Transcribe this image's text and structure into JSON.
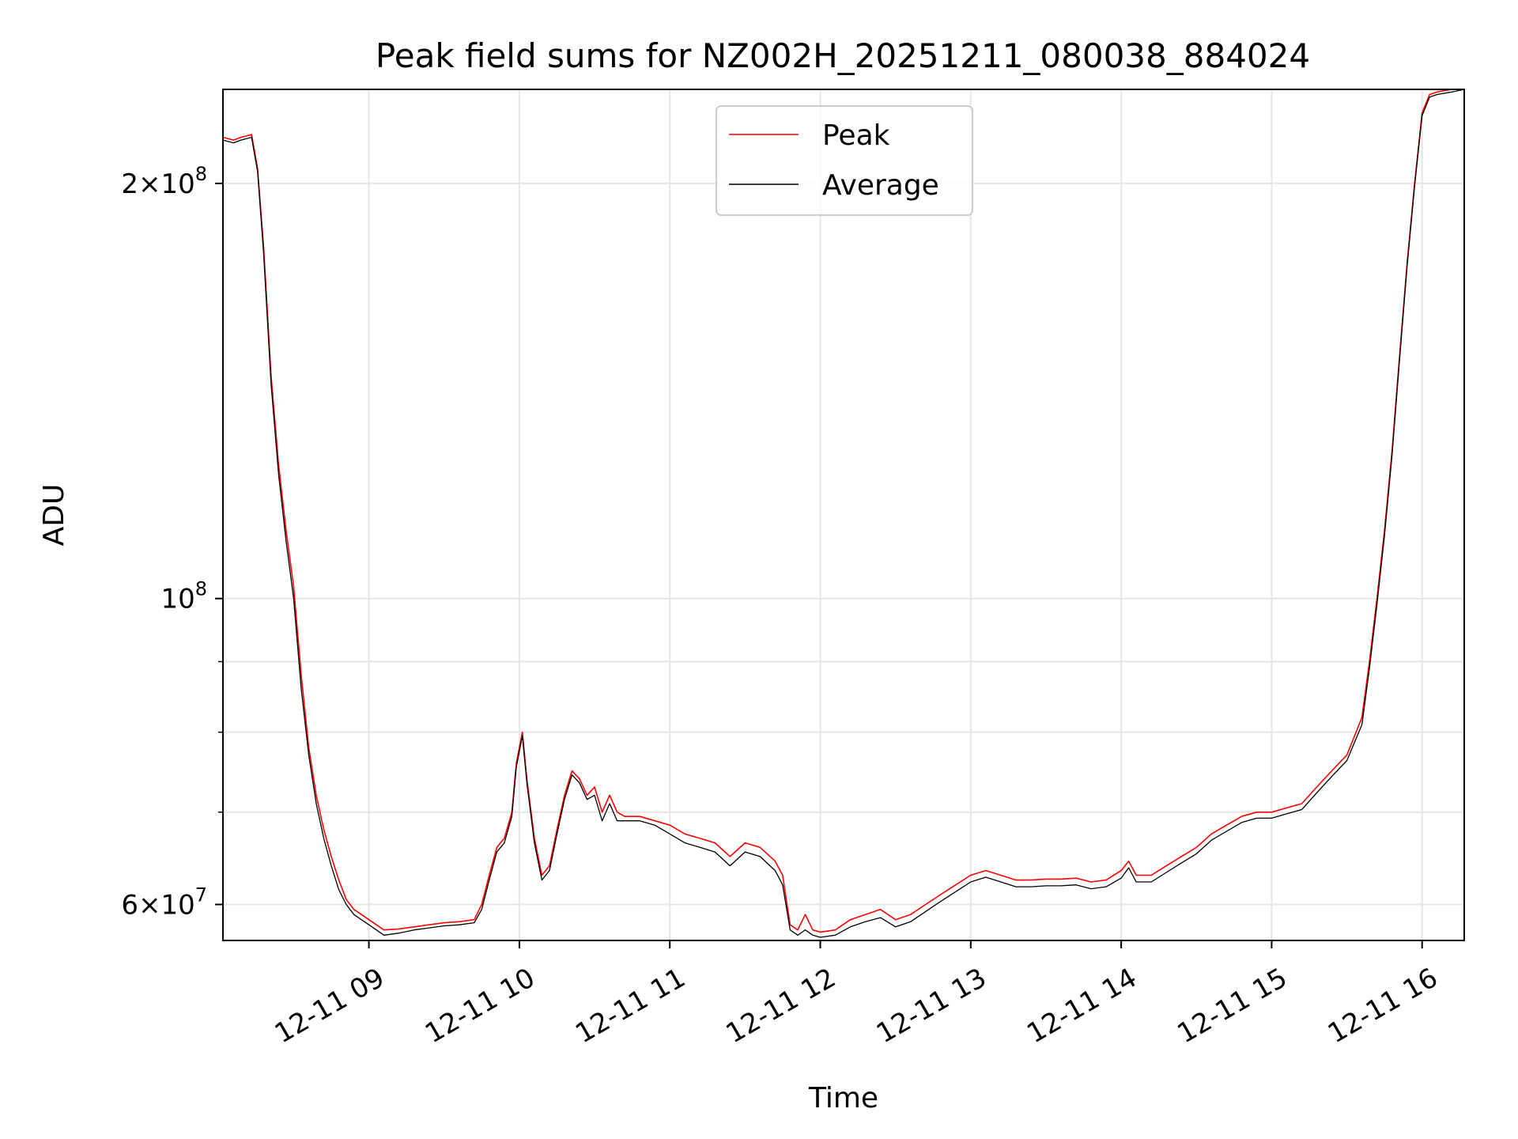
{
  "chart_data": {
    "type": "line",
    "title": "Peak field sums for NZ002H_20251211_080038_884024",
    "xlabel": "Time",
    "ylabel": "ADU",
    "yscale": "log",
    "xlim": [
      8.03,
      16.28
    ],
    "ylim": [
      56500000,
      234000000
    ],
    "grid": true,
    "legend_position": "top-center",
    "x_ticks": [
      {
        "value": 9,
        "label": "12-11 09"
      },
      {
        "value": 10,
        "label": "12-11 10"
      },
      {
        "value": 11,
        "label": "12-11 11"
      },
      {
        "value": 12,
        "label": "12-11 12"
      },
      {
        "value": 13,
        "label": "12-11 13"
      },
      {
        "value": 14,
        "label": "12-11 14"
      },
      {
        "value": 15,
        "label": "12-11 15"
      },
      {
        "value": 16,
        "label": "12-11 16"
      }
    ],
    "y_major_ticks": [
      {
        "value": 60000000,
        "mantissa": "6",
        "exp": "7"
      },
      {
        "value": 100000000,
        "mantissa": "",
        "exp": "8"
      },
      {
        "value": 200000000,
        "mantissa": "2",
        "exp": "8"
      }
    ],
    "y_minor_ticks": [
      70000000,
      80000000,
      90000000
    ],
    "series": [
      {
        "name": "Peak",
        "color": "#ff0000",
        "x": [
          8.03,
          8.1,
          8.15,
          8.22,
          8.26,
          8.3,
          8.35,
          8.4,
          8.45,
          8.5,
          8.55,
          8.6,
          8.65,
          8.7,
          8.75,
          8.8,
          8.85,
          8.9,
          8.95,
          9.0,
          9.05,
          9.1,
          9.2,
          9.3,
          9.4,
          9.5,
          9.6,
          9.7,
          9.75,
          9.8,
          9.85,
          9.9,
          9.95,
          9.98,
          10.02,
          10.05,
          10.1,
          10.15,
          10.2,
          10.25,
          10.3,
          10.35,
          10.4,
          10.45,
          10.5,
          10.55,
          10.6,
          10.65,
          10.7,
          10.8,
          10.9,
          11.0,
          11.1,
          11.2,
          11.3,
          11.4,
          11.5,
          11.6,
          11.7,
          11.75,
          11.8,
          11.85,
          11.9,
          11.95,
          12.0,
          12.1,
          12.2,
          12.3,
          12.4,
          12.5,
          12.6,
          12.7,
          12.8,
          12.9,
          13.0,
          13.1,
          13.2,
          13.3,
          13.4,
          13.5,
          13.6,
          13.7,
          13.8,
          13.9,
          14.0,
          14.05,
          14.1,
          14.2,
          14.3,
          14.4,
          14.5,
          14.6,
          14.7,
          14.8,
          14.9,
          15.0,
          15.1,
          15.2,
          15.3,
          15.4,
          15.5,
          15.6,
          15.65,
          15.7,
          15.75,
          15.8,
          15.85,
          15.9,
          15.95,
          16.0,
          16.05,
          16.1,
          16.2,
          16.28
        ],
        "y": [
          216000000,
          215000000,
          216000000,
          217000000,
          205000000,
          180000000,
          145000000,
          125000000,
          112000000,
          102000000,
          88000000,
          78000000,
          72000000,
          68000000,
          65000000,
          62500000,
          60500000,
          59500000,
          59000000,
          58500000,
          58000000,
          57500000,
          57600000,
          57800000,
          58000000,
          58200000,
          58300000,
          58500000,
          60000000,
          63000000,
          66000000,
          67000000,
          70000000,
          76000000,
          80000000,
          74000000,
          67000000,
          63000000,
          64000000,
          68000000,
          72000000,
          75000000,
          74000000,
          72000000,
          73000000,
          70000000,
          72000000,
          70000000,
          69500000,
          69500000,
          69000000,
          68500000,
          67500000,
          67000000,
          66500000,
          65000000,
          66500000,
          66000000,
          64500000,
          63000000,
          58000000,
          57500000,
          59000000,
          57500000,
          57300000,
          57500000,
          58500000,
          59000000,
          59500000,
          58500000,
          59000000,
          60000000,
          61000000,
          62000000,
          63000000,
          63500000,
          63000000,
          62500000,
          62500000,
          62600000,
          62600000,
          62700000,
          62300000,
          62500000,
          63500000,
          64500000,
          63000000,
          63000000,
          64000000,
          65000000,
          66000000,
          67500000,
          68500000,
          69500000,
          70000000,
          70000000,
          70500000,
          71000000,
          73000000,
          75000000,
          77000000,
          82000000,
          90000000,
          100000000,
          112000000,
          128000000,
          150000000,
          175000000,
          200000000,
          225000000,
          232000000,
          233000000,
          234000000,
          234000000
        ]
      },
      {
        "name": "Average",
        "color": "#000000",
        "x": [
          8.03,
          8.1,
          8.15,
          8.22,
          8.26,
          8.3,
          8.35,
          8.4,
          8.45,
          8.5,
          8.55,
          8.6,
          8.65,
          8.7,
          8.75,
          8.8,
          8.85,
          8.9,
          8.95,
          9.0,
          9.05,
          9.1,
          9.2,
          9.3,
          9.4,
          9.5,
          9.6,
          9.7,
          9.75,
          9.8,
          9.85,
          9.9,
          9.95,
          9.98,
          10.02,
          10.05,
          10.1,
          10.15,
          10.2,
          10.25,
          10.3,
          10.35,
          10.4,
          10.45,
          10.5,
          10.55,
          10.6,
          10.65,
          10.7,
          10.8,
          10.9,
          11.0,
          11.1,
          11.2,
          11.3,
          11.4,
          11.5,
          11.6,
          11.7,
          11.75,
          11.8,
          11.85,
          11.9,
          11.95,
          12.0,
          12.1,
          12.2,
          12.3,
          12.4,
          12.5,
          12.6,
          12.7,
          12.8,
          12.9,
          13.0,
          13.1,
          13.2,
          13.3,
          13.4,
          13.5,
          13.6,
          13.7,
          13.8,
          13.9,
          14.0,
          14.05,
          14.1,
          14.2,
          14.3,
          14.4,
          14.5,
          14.6,
          14.7,
          14.8,
          14.9,
          15.0,
          15.1,
          15.2,
          15.3,
          15.4,
          15.5,
          15.6,
          15.65,
          15.7,
          15.75,
          15.8,
          15.85,
          15.9,
          15.95,
          16.0,
          16.05,
          16.1,
          16.2,
          16.28
        ],
        "y": [
          215000000,
          214000000,
          215000000,
          216000000,
          204000000,
          178000000,
          143000000,
          123000000,
          110000000,
          100000000,
          86000000,
          77000000,
          71000000,
          67000000,
          64000000,
          61500000,
          60000000,
          59000000,
          58500000,
          58000000,
          57500000,
          57000000,
          57200000,
          57500000,
          57700000,
          57900000,
          58000000,
          58200000,
          59500000,
          62500000,
          65500000,
          66500000,
          69500000,
          75500000,
          79500000,
          73500000,
          66500000,
          62500000,
          63500000,
          67500000,
          71500000,
          74500000,
          73500000,
          71500000,
          72000000,
          69000000,
          71000000,
          69000000,
          69000000,
          69000000,
          68500000,
          67500000,
          66500000,
          66000000,
          65500000,
          64000000,
          65500000,
          65000000,
          63500000,
          62000000,
          57500000,
          57000000,
          57500000,
          57000000,
          56800000,
          57000000,
          57800000,
          58300000,
          58700000,
          57800000,
          58300000,
          59300000,
          60300000,
          61300000,
          62300000,
          62800000,
          62300000,
          61800000,
          61800000,
          61900000,
          61900000,
          62000000,
          61600000,
          61800000,
          62700000,
          63800000,
          62300000,
          62300000,
          63300000,
          64300000,
          65300000,
          66800000,
          67800000,
          68800000,
          69300000,
          69300000,
          69800000,
          70300000,
          72300000,
          74300000,
          76300000,
          81000000,
          89000000,
          99000000,
          111000000,
          127000000,
          149000000,
          174000000,
          199000000,
          224000000,
          231000000,
          232000000,
          233000000,
          234000000
        ]
      }
    ]
  }
}
